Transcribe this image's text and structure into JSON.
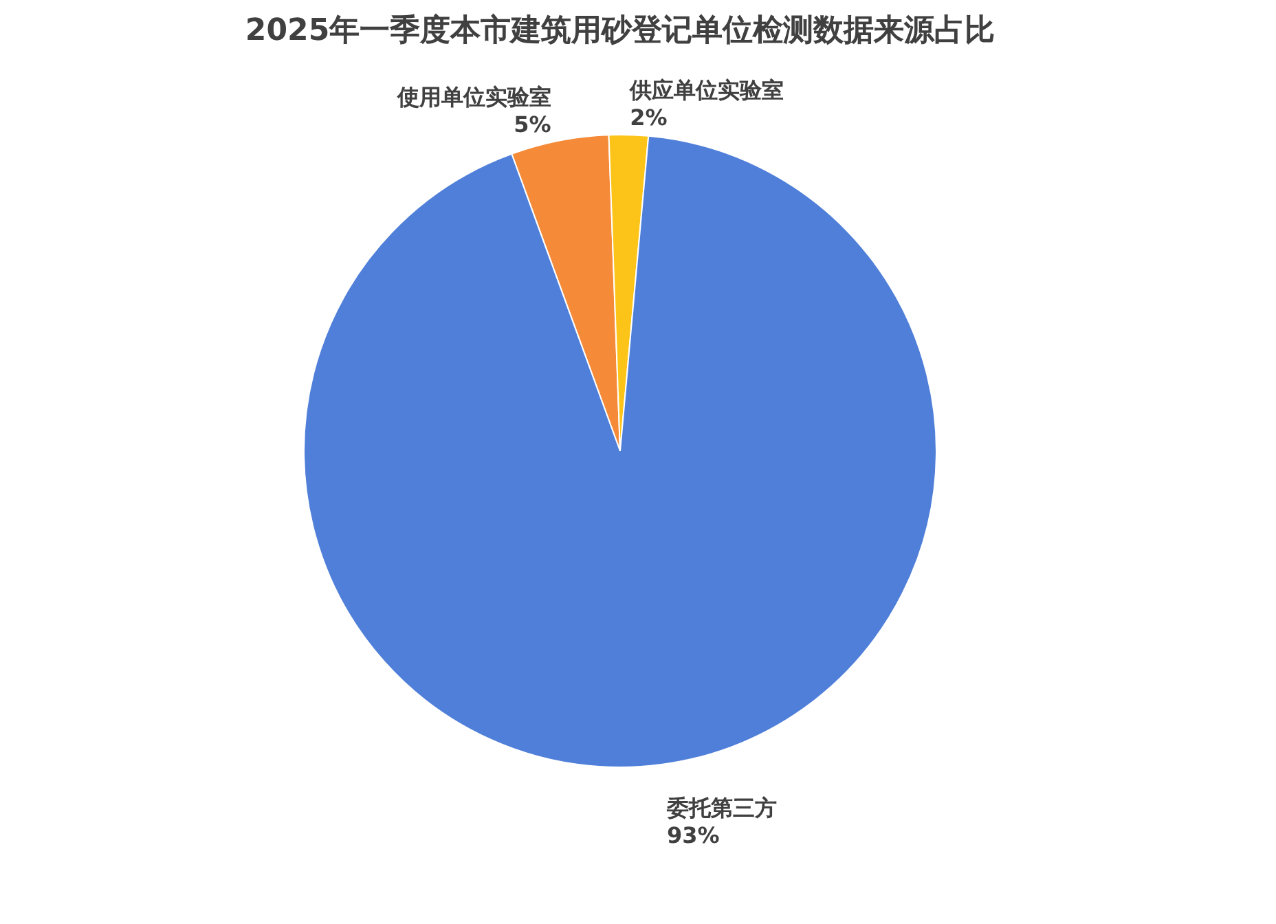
{
  "chart_data": {
    "type": "pie",
    "title": "2025年一季度本市建筑用砂登记单位检测数据来源占比",
    "categories": [
      "使用单位实验室",
      "供应单位实验室",
      "委托第三方"
    ],
    "values": [
      5,
      2,
      93
    ],
    "value_labels": [
      "5%",
      "2%",
      "93%"
    ],
    "colors": [
      "#f58a38",
      "#fcc419",
      "#4f7fd9"
    ],
    "legend": false
  }
}
